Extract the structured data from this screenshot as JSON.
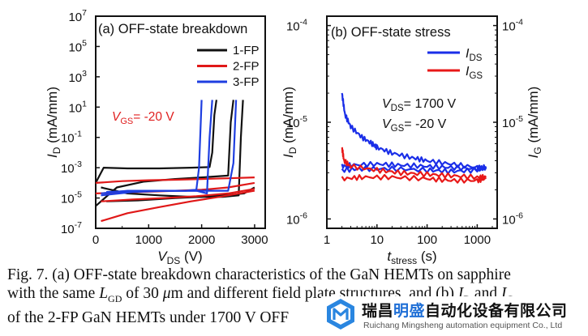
{
  "chart_data": [
    {
      "type": "line",
      "panel_label": "(a) OFF-state breakdown",
      "xlabel": "V",
      "xlabel_sub": "DS",
      "xlabel_unit": " (V)",
      "ylabel": "I",
      "ylabel_sub": "D",
      "ylabel_unit": " (mA/mm)",
      "xlim": [
        0,
        3200
      ],
      "ylim": [
        1e-07,
        10000000.0
      ],
      "yscale": "log",
      "x_ticks": [
        0,
        1000,
        2000,
        3000
      ],
      "y_tick_exponents": [
        7,
        5,
        3,
        1,
        -1,
        -3,
        -5,
        -7
      ],
      "legend_position": "top-right",
      "annotation": {
        "text": "V",
        "sub": "GS",
        "rest": "= -20 V",
        "color": "#e02020"
      },
      "series": [
        {
          "name": "1-FP",
          "color": "#111111",
          "curves": [
            {
              "x": [
                0,
                150,
                600,
                1200,
                1800,
                2150,
                2200,
                2240,
                2280
              ],
              "y": [
                0.0001,
                0.001,
                0.0009,
                0.0009,
                0.001,
                0.0011,
                0.01,
                3,
                30
              ]
            },
            {
              "x": [
                0,
                400,
                900,
                1500,
                2000,
                2500,
                2550,
                2600
              ],
              "y": [
                3e-06,
                5e-05,
                0.00012,
                0.00018,
                0.00023,
                0.0003,
                1,
                30
              ]
            },
            {
              "x": [
                100,
                600,
                1200,
                1800,
                2400,
                2700,
                2740,
                2780
              ],
              "y": [
                5e-05,
                2e-05,
                1.5e-05,
                1.2e-05,
                1.2e-05,
                1.5e-05,
                0.1,
                30
              ]
            },
            {
              "x": [
                200,
                800,
                1500,
                2200,
                2800,
                3000
              ],
              "y": [
                6e-06,
                7e-06,
                1e-05,
                1.3e-05,
                2e-05,
                5e-05
              ]
            }
          ]
        },
        {
          "name": "2-FP",
          "color": "#e01818",
          "curves": [
            {
              "x": [
                0,
                500,
                1000,
                1500,
                2000,
                2500,
                3000
              ],
              "y": [
                0.0001,
                0.00013,
                0.00015,
                0.00016,
                0.00018,
                0.0002,
                0.00023
              ]
            },
            {
              "x": [
                0,
                500,
                1000,
                1500,
                2000,
                2500,
                3000
              ],
              "y": [
                2e-05,
                2.3e-05,
                2.6e-05,
                3e-05,
                3.5e-05,
                5e-05,
                0.0001
              ]
            },
            {
              "x": [
                100,
                600,
                1200,
                1800,
                2400,
                3000
              ],
              "y": [
                3e-07,
                1e-06,
                2.5e-06,
                6e-06,
                1.3e-05,
                3e-05
              ]
            },
            {
              "x": [
                100,
                700,
                1300,
                1900,
                2500,
                3000
              ],
              "y": [
                6e-06,
                8e-06,
                1e-05,
                1.3e-05,
                2e-05,
                4e-05
              ]
            }
          ]
        },
        {
          "name": "3-FP",
          "color": "#1e3ee0",
          "curves": [
            {
              "x": [
                100,
                600,
                1200,
                1700,
                1900,
                1950,
                2000
              ],
              "y": [
                2e-05,
                3e-05,
                3e-05,
                3e-05,
                3.5e-05,
                0.001,
                30
              ]
            },
            {
              "x": [
                100,
                700,
                1300,
                1900,
                2100,
                2150,
                2200
              ],
              "y": [
                1.5e-05,
                2.5e-05,
                3e-05,
                3e-05,
                2e-05,
                0.1,
                30
              ]
            },
            {
              "x": [
                200,
                800,
                1400,
                2000,
                2500,
                2600,
                2650
              ],
              "y": [
                2.5e-05,
                3e-05,
                3e-05,
                3e-05,
                3e-05,
                0.002,
                30
              ]
            }
          ]
        }
      ]
    },
    {
      "type": "line",
      "panel_label": "(b) OFF-state stress",
      "xlabel": "t",
      "xlabel_sub": "stress",
      "xlabel_unit": " (s)",
      "ylabel": "I",
      "ylabel_sub": "D",
      "ylabel_unit": " (mA/mm)",
      "y2label": "I",
      "y2label_sub": "G",
      "y2label_unit": " (mA/mm)",
      "xscale": "log",
      "yscale": "log",
      "xlim": [
        1,
        2500
      ],
      "ylim": [
        8e-07,
        0.000125
      ],
      "x_ticks": [
        1,
        10,
        100,
        1000
      ],
      "y_tick_exponents": [
        -4,
        -5,
        -6
      ],
      "conditions": [
        {
          "text": "V",
          "sub": "DS",
          "rest": "= 1700 V"
        },
        {
          "text": "V",
          "sub": "GS",
          "rest": "= -20 V"
        }
      ],
      "legend_position": "top-right",
      "series": [
        {
          "name": "I",
          "name_sub": "DS",
          "color": "#1a2ee8",
          "curves": [
            {
              "x": [
                2,
                2.3,
                3,
                5,
                8,
                10,
                20,
                50,
                100,
                300,
                1000,
                1500
              ],
              "y": [
                2e-05,
                1.2e-05,
                9e-06,
                7e-06,
                6e-06,
                5.5e-06,
                4.8e-06,
                4.3e-06,
                4e-06,
                3.7e-06,
                3.4e-06,
                3.3e-06
              ]
            },
            {
              "x": [
                2,
                3,
                10,
                30,
                100,
                300,
                1000,
                1500
              ],
              "y": [
                3.5e-06,
                3.6e-06,
                3.7e-06,
                3.6e-06,
                3.5e-06,
                3.4e-06,
                3.3e-06,
                3.4e-06
              ]
            },
            {
              "x": [
                2,
                5,
                20,
                100,
                300,
                1000,
                1500
              ],
              "y": [
                3.2e-06,
                3.3e-06,
                3.3e-06,
                3.2e-06,
                3.1e-06,
                3.2e-06,
                3.5e-06
              ]
            }
          ]
        },
        {
          "name": "I",
          "name_sub": "GS",
          "color": "#e81818",
          "curves": [
            {
              "x": [
                2,
                2.2,
                3,
                10,
                30,
                100,
                300,
                1000,
                1500
              ],
              "y": [
                5.5e-06,
                4e-06,
                3.5e-06,
                3.2e-06,
                3e-06,
                2.9e-06,
                2.8e-06,
                2.7e-06,
                2.7e-06
              ]
            },
            {
              "x": [
                2,
                5,
                20,
                100,
                300,
                1000,
                1500
              ],
              "y": [
                2.6e-06,
                2.7e-06,
                2.7e-06,
                2.6e-06,
                2.5e-06,
                2.5e-06,
                2.6e-06
              ]
            }
          ]
        }
      ]
    }
  ],
  "caption": {
    "line1": "Fig. 7. (a) OFF-state breakdown characteristics of the GaN HEMTs on sapphire",
    "line2_pre": "with the same ",
    "line2_sym": "L",
    "line2_sub": "GD",
    "line2_mid": " of 30 ",
    "line2_mu": "μ",
    "line2_post": "m and different field plate structures, and (b) ",
    "line2_i1": "I",
    "line2_s1": "D",
    "line2_and": " and ",
    "line2_i2": "I",
    "line2_s2": "G",
    "line3": "of the 2-FP GaN HEMTs under 1700 V OFF"
  },
  "watermark": {
    "name_pre": "瑞昌",
    "name_accent": "明盛",
    "name_post": "自动化设备有限公司",
    "english": "Ruichang Mingsheng automation equipment Co., Ltd"
  },
  "colors": {
    "black": "#111111",
    "red": "#e01818",
    "blue": "#1e3ee0",
    "accent": "#1f6fd6"
  }
}
